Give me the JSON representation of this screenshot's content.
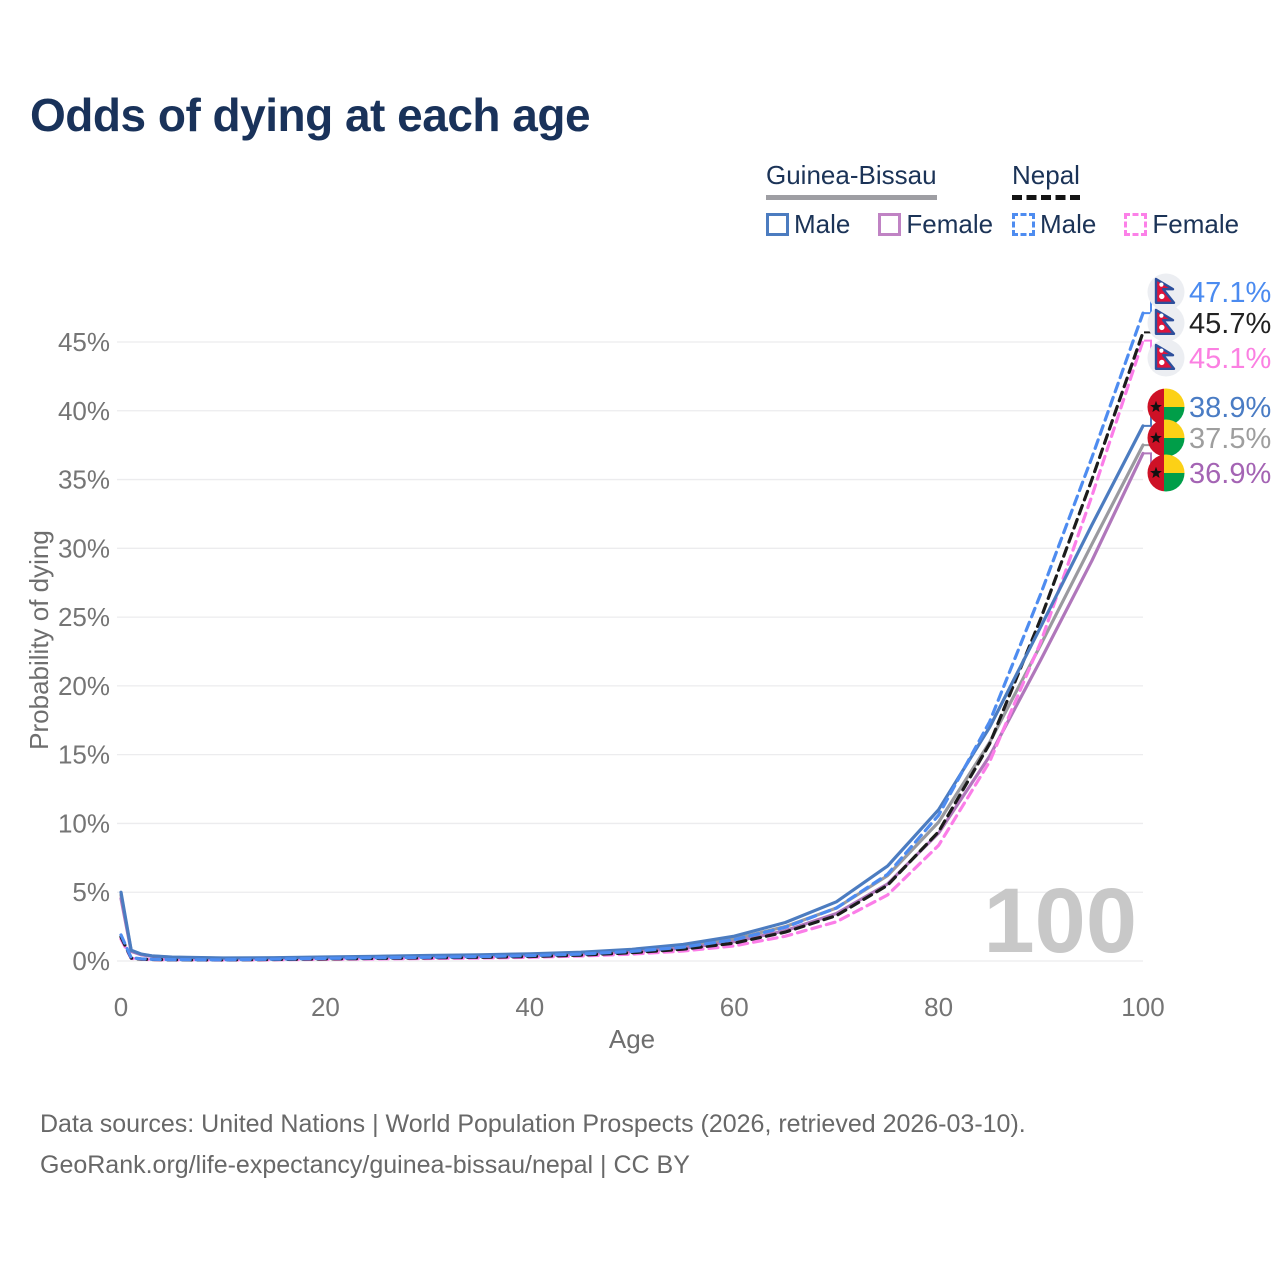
{
  "title": "Odds of dying at each age",
  "legend": {
    "groups": [
      {
        "title": "Guinea-Bissau",
        "underline": "solid",
        "underline_color": "#9e9ea3",
        "items": [
          {
            "label": "Male",
            "color": "#4c7cc0",
            "dashed": false
          },
          {
            "label": "Female",
            "color": "#c083c4",
            "dashed": false
          }
        ]
      },
      {
        "title": "Nepal",
        "underline": "dashed",
        "underline_color": "#141414",
        "items": [
          {
            "label": "Male",
            "color": "#4e8cf0",
            "dashed": true
          },
          {
            "label": "Female",
            "color": "#fc80e8",
            "dashed": true
          }
        ]
      }
    ]
  },
  "chart_data": {
    "type": "line",
    "title": "Odds of dying at each age",
    "xlabel": "Age",
    "ylabel": "Probability of dying",
    "x_ticks": [
      0,
      20,
      40,
      60,
      80,
      100
    ],
    "y_ticks": [
      0,
      5,
      10,
      15,
      20,
      25,
      30,
      35,
      40,
      45
    ],
    "y_tick_suffix": "%",
    "xlim": [
      0,
      100
    ],
    "ylim": [
      0,
      47.5
    ],
    "grid": "horizontal",
    "legend_position": "top-right",
    "age_watermark": "100",
    "series": [
      {
        "id": "gb-total",
        "name": "Guinea-Bissau Total",
        "country": "Guinea-Bissau",
        "sex": "Both",
        "style": "solid",
        "color": "#9a9a9f",
        "flag": "guinea-bissau",
        "end_label": "37.5%",
        "end_label_color": "#9e9e9e",
        "points": [
          [
            0,
            4.8
          ],
          [
            1,
            0.74
          ],
          [
            2,
            0.47
          ],
          [
            3,
            0.36
          ],
          [
            5,
            0.26
          ],
          [
            10,
            0.2
          ],
          [
            15,
            0.21
          ],
          [
            20,
            0.26
          ],
          [
            25,
            0.3
          ],
          [
            30,
            0.35
          ],
          [
            35,
            0.4
          ],
          [
            40,
            0.46
          ],
          [
            45,
            0.57
          ],
          [
            50,
            0.75
          ],
          [
            55,
            1.05
          ],
          [
            60,
            1.6
          ],
          [
            65,
            2.5
          ],
          [
            70,
            3.85
          ],
          [
            75,
            6.2
          ],
          [
            80,
            10.1
          ],
          [
            85,
            15.9
          ],
          [
            90,
            23.0
          ],
          [
            95,
            30.3
          ],
          [
            100,
            37.5
          ]
        ]
      },
      {
        "id": "gb-female",
        "name": "Guinea-Bissau Female",
        "country": "Guinea-Bissau",
        "sex": "Female",
        "style": "solid",
        "color": "#b077bb",
        "flag": "guinea-bissau",
        "end_label": "36.9%",
        "end_label_color": "#a464b4",
        "points": [
          [
            0,
            4.55
          ],
          [
            1,
            0.7
          ],
          [
            2,
            0.45
          ],
          [
            3,
            0.34
          ],
          [
            5,
            0.25
          ],
          [
            10,
            0.19
          ],
          [
            15,
            0.2
          ],
          [
            20,
            0.23
          ],
          [
            25,
            0.27
          ],
          [
            30,
            0.31
          ],
          [
            35,
            0.36
          ],
          [
            40,
            0.41
          ],
          [
            45,
            0.5
          ],
          [
            50,
            0.66
          ],
          [
            55,
            0.92
          ],
          [
            60,
            1.4
          ],
          [
            65,
            2.2
          ],
          [
            70,
            3.45
          ],
          [
            75,
            5.6
          ],
          [
            80,
            9.3
          ],
          [
            85,
            14.9
          ],
          [
            90,
            21.9
          ],
          [
            95,
            29.1
          ],
          [
            100,
            36.9
          ]
        ]
      },
      {
        "id": "np-female",
        "name": "Nepal Female",
        "country": "Nepal",
        "sex": "Female",
        "style": "dashed",
        "color": "#fb7de8",
        "flag": "nepal",
        "end_label": "45.1%",
        "end_label_color": "#fb80e2",
        "points": [
          [
            0,
            1.6
          ],
          [
            1,
            0.19
          ],
          [
            2,
            0.13
          ],
          [
            3,
            0.1
          ],
          [
            5,
            0.08
          ],
          [
            10,
            0.07
          ],
          [
            15,
            0.09
          ],
          [
            20,
            0.12
          ],
          [
            25,
            0.15
          ],
          [
            30,
            0.18
          ],
          [
            35,
            0.22
          ],
          [
            40,
            0.27
          ],
          [
            45,
            0.36
          ],
          [
            50,
            0.5
          ],
          [
            55,
            0.73
          ],
          [
            60,
            1.1
          ],
          [
            65,
            1.8
          ],
          [
            70,
            2.85
          ],
          [
            75,
            4.8
          ],
          [
            80,
            8.4
          ],
          [
            85,
            14.5
          ],
          [
            90,
            23.2
          ],
          [
            95,
            33.8
          ],
          [
            100,
            45.1
          ]
        ]
      },
      {
        "id": "np-total",
        "name": "Nepal Total",
        "country": "Nepal",
        "sex": "Both",
        "style": "dashed",
        "color": "#1c1c1c",
        "flag": "nepal",
        "end_label": "45.7%",
        "end_label_color": "#222222",
        "points": [
          [
            0,
            1.75
          ],
          [
            1,
            0.21
          ],
          [
            2,
            0.14
          ],
          [
            3,
            0.11
          ],
          [
            5,
            0.09
          ],
          [
            10,
            0.08
          ],
          [
            15,
            0.11
          ],
          [
            20,
            0.15
          ],
          [
            25,
            0.19
          ],
          [
            30,
            0.23
          ],
          [
            35,
            0.27
          ],
          [
            40,
            0.33
          ],
          [
            45,
            0.43
          ],
          [
            50,
            0.6
          ],
          [
            55,
            0.86
          ],
          [
            60,
            1.3
          ],
          [
            65,
            2.1
          ],
          [
            70,
            3.3
          ],
          [
            75,
            5.5
          ],
          [
            80,
            9.4
          ],
          [
            85,
            15.8
          ],
          [
            90,
            24.9
          ],
          [
            95,
            35.0
          ],
          [
            100,
            45.7
          ]
        ]
      },
      {
        "id": "gb-male",
        "name": "Guinea-Bissau Male",
        "country": "Guinea-Bissau",
        "sex": "Male",
        "style": "solid",
        "color": "#4c7cc0",
        "flag": "guinea-bissau",
        "end_label": "38.9%",
        "end_label_color": "#4a7cc4",
        "points": [
          [
            0,
            5.0
          ],
          [
            1,
            0.78
          ],
          [
            2,
            0.5
          ],
          [
            3,
            0.38
          ],
          [
            5,
            0.28
          ],
          [
            10,
            0.22
          ],
          [
            15,
            0.24
          ],
          [
            20,
            0.29
          ],
          [
            25,
            0.34
          ],
          [
            30,
            0.4
          ],
          [
            35,
            0.45
          ],
          [
            40,
            0.52
          ],
          [
            45,
            0.64
          ],
          [
            50,
            0.85
          ],
          [
            55,
            1.2
          ],
          [
            60,
            1.8
          ],
          [
            65,
            2.8
          ],
          [
            70,
            4.3
          ],
          [
            75,
            6.9
          ],
          [
            80,
            11.0
          ],
          [
            85,
            17.0
          ],
          [
            90,
            24.3
          ],
          [
            95,
            31.7
          ],
          [
            100,
            38.9
          ]
        ]
      },
      {
        "id": "np-male",
        "name": "Nepal Male",
        "country": "Nepal",
        "sex": "Male",
        "style": "dashed",
        "color": "#4e8cf0",
        "flag": "nepal",
        "end_label": "47.1%",
        "end_label_color": "#4b8bf0",
        "points": [
          [
            0,
            1.9
          ],
          [
            1,
            0.24
          ],
          [
            2,
            0.16
          ],
          [
            3,
            0.12
          ],
          [
            5,
            0.1
          ],
          [
            10,
            0.09
          ],
          [
            15,
            0.13
          ],
          [
            20,
            0.19
          ],
          [
            25,
            0.23
          ],
          [
            30,
            0.27
          ],
          [
            35,
            0.32
          ],
          [
            40,
            0.39
          ],
          [
            45,
            0.5
          ],
          [
            50,
            0.7
          ],
          [
            55,
            1.0
          ],
          [
            60,
            1.55
          ],
          [
            65,
            2.45
          ],
          [
            70,
            3.85
          ],
          [
            75,
            6.3
          ],
          [
            80,
            10.6
          ],
          [
            85,
            17.4
          ],
          [
            90,
            26.7
          ],
          [
            95,
            36.6
          ],
          [
            100,
            47.1
          ]
        ]
      }
    ]
  },
  "footer": {
    "line1": "Data sources: United Nations | World Population Prospects (2026, retrieved 2026-03-10).",
    "line2": "GeoRank.org/life-expectancy/guinea-bissau/nepal | CC BY"
  }
}
